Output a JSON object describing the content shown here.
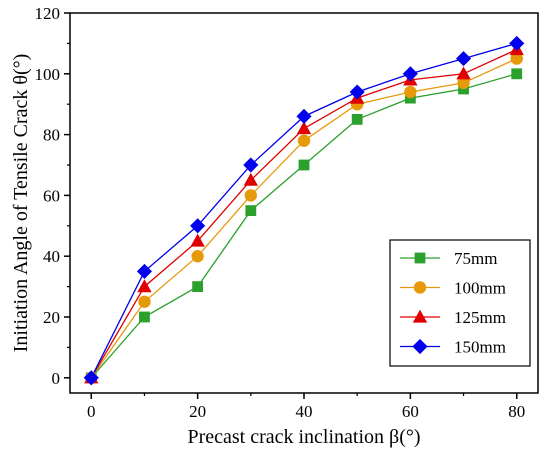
{
  "chart_data": {
    "type": "line",
    "title": "",
    "xlabel": "Precast crack inclination β(°)",
    "ylabel": "Initiation Angle of Tensile Crack θ(°)",
    "x": [
      0,
      10,
      20,
      30,
      40,
      50,
      60,
      70,
      80
    ],
    "xlim": [
      -4,
      84
    ],
    "ylim": [
      -5,
      120
    ],
    "xticks": [
      0,
      20,
      40,
      60,
      80
    ],
    "yticks": [
      0,
      20,
      40,
      60,
      80,
      100,
      120
    ],
    "grid": false,
    "legend_position": "bottom-right",
    "series": [
      {
        "name": "75mm",
        "color": "#2ca02c",
        "marker": "square",
        "values": [
          0,
          20,
          30,
          55,
          70,
          85,
          92,
          95,
          100
        ]
      },
      {
        "name": "100mm",
        "color": "#e69a0a",
        "marker": "circle",
        "values": [
          0,
          25,
          40,
          60,
          78,
          90,
          94,
          97,
          105
        ]
      },
      {
        "name": "125mm",
        "color": "#e00000",
        "marker": "triangle",
        "values": [
          0,
          30,
          45,
          65,
          82,
          92,
          98,
          100,
          108
        ]
      },
      {
        "name": "150mm",
        "color": "#0000ee",
        "marker": "diamond",
        "values": [
          0,
          35,
          50,
          70,
          86,
          94,
          100,
          105,
          110
        ]
      }
    ]
  }
}
